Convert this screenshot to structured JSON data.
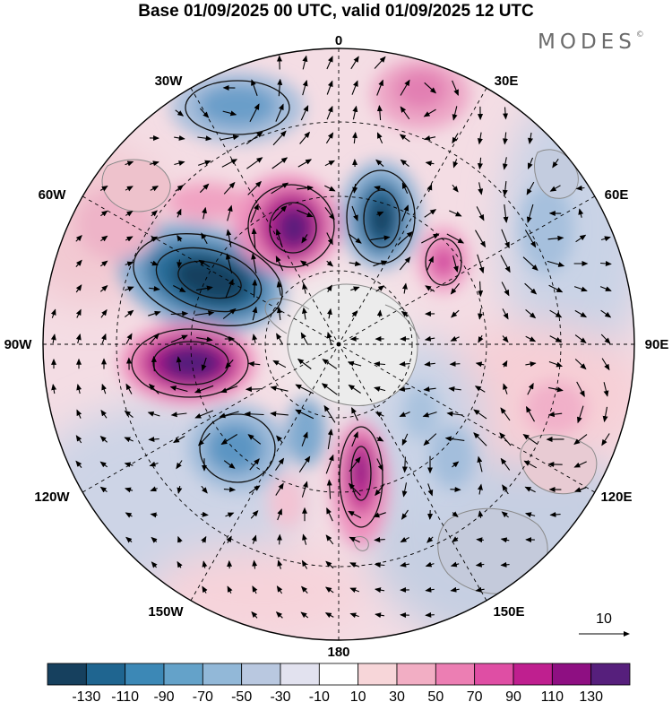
{
  "title": "Base 01/09/2025 00 UTC, valid 01/09/2025 12 UTC",
  "brand": "MODES",
  "brand_mark": "©",
  "longitude_labels": [
    "0",
    "30E",
    "60E",
    "90E",
    "120E",
    "150E",
    "180",
    "150W",
    "120W",
    "90W",
    "60W",
    "30W"
  ],
  "vector_scale": {
    "label": "10"
  },
  "colorbar": {
    "colors": [
      "#16405e",
      "#1f6590",
      "#3c88b6",
      "#64a2c9",
      "#92b8d8",
      "#b9c8e0",
      "#e2e2ef",
      "#ffffff",
      "#f7d6d9",
      "#f2aec4",
      "#ec7eb3",
      "#df4ea4",
      "#bf1f8f",
      "#8e0f82",
      "#561f7c"
    ],
    "tick_labels": [
      "-130",
      "-110",
      "-90",
      "-70",
      "-50",
      "-30",
      "-10",
      "10",
      "30",
      "50",
      "70",
      "90",
      "110",
      "130"
    ]
  },
  "colors": {
    "coast": "#8a8a8a",
    "contour": "#111111",
    "grid": "#000000"
  }
}
